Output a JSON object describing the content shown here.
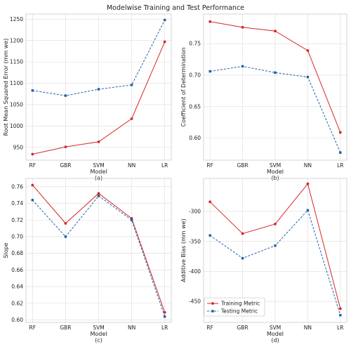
{
  "figure": {
    "title": "Modelwise Training and Test Performance"
  },
  "colors": {
    "training": "#d62728",
    "testing": "#1f5fa8",
    "grid": "#dcdcdc",
    "frame": "#cccccc"
  },
  "legend": {
    "training_label": "Training Metric",
    "testing_label": "Testing Metric",
    "placement": "lower-left of panel (d)"
  },
  "chart_data": [
    {
      "panel": "(a)",
      "type": "line",
      "categories": [
        "RF",
        "GBR",
        "SVM",
        "NN",
        "LR"
      ],
      "xlabel": "Model",
      "ylabel": "Root Mean Squared Error  (mm we)",
      "ylim": [
        920,
        1262
      ],
      "yticks": [
        950,
        1000,
        1050,
        1100,
        1150,
        1200,
        1250
      ],
      "tick_decimals": 0,
      "series": [
        {
          "name": "Training Metric",
          "values": [
            934,
            951,
            963,
            1017,
            1197
          ]
        },
        {
          "name": "Testing Metric",
          "values": [
            1083,
            1071,
            1086,
            1096,
            1248
          ]
        }
      ]
    },
    {
      "panel": "(b)",
      "type": "line",
      "categories": [
        "RF",
        "GBR",
        "SVM",
        "NN",
        "LR"
      ],
      "xlabel": "Model",
      "ylabel": "Coefficient of Determination",
      "ylim": [
        0.565,
        0.797
      ],
      "yticks": [
        0.6,
        0.65,
        0.7,
        0.75
      ],
      "tick_decimals": 2,
      "series": [
        {
          "name": "Training Metric",
          "values": [
            0.785,
            0.776,
            0.77,
            0.739,
            0.609
          ]
        },
        {
          "name": "Testing Metric",
          "values": [
            0.706,
            0.714,
            0.704,
            0.697,
            0.577
          ]
        }
      ]
    },
    {
      "panel": "(c)",
      "type": "line",
      "categories": [
        "RF",
        "GBR",
        "SVM",
        "NN",
        "LR"
      ],
      "xlabel": "Model",
      "ylabel": "Slope",
      "ylim": [
        0.597,
        0.77
      ],
      "yticks": [
        0.6,
        0.62,
        0.64,
        0.66,
        0.68,
        0.7,
        0.72,
        0.74,
        0.76
      ],
      "tick_decimals": 2,
      "series": [
        {
          "name": "Training Metric",
          "values": [
            0.762,
            0.716,
            0.752,
            0.722,
            0.609
          ]
        },
        {
          "name": "Testing Metric",
          "values": [
            0.744,
            0.7,
            0.749,
            0.72,
            0.604
          ]
        }
      ]
    },
    {
      "panel": "(d)",
      "type": "line",
      "categories": [
        "RF",
        "GBR",
        "SVM",
        "NN",
        "LR"
      ],
      "xlabel": "Model",
      "ylabel": "Additive Bias  (mm we)",
      "ylim": [
        -485,
        -245
      ],
      "yticks": [
        -450,
        -400,
        -350,
        -300
      ],
      "tick_decimals": 0,
      "series": [
        {
          "name": "Training Metric",
          "values": [
            -284,
            -337,
            -321,
            -254,
            -462
          ]
        },
        {
          "name": "Testing Metric",
          "values": [
            -340,
            -378,
            -357,
            -298,
            -473
          ]
        }
      ]
    }
  ]
}
